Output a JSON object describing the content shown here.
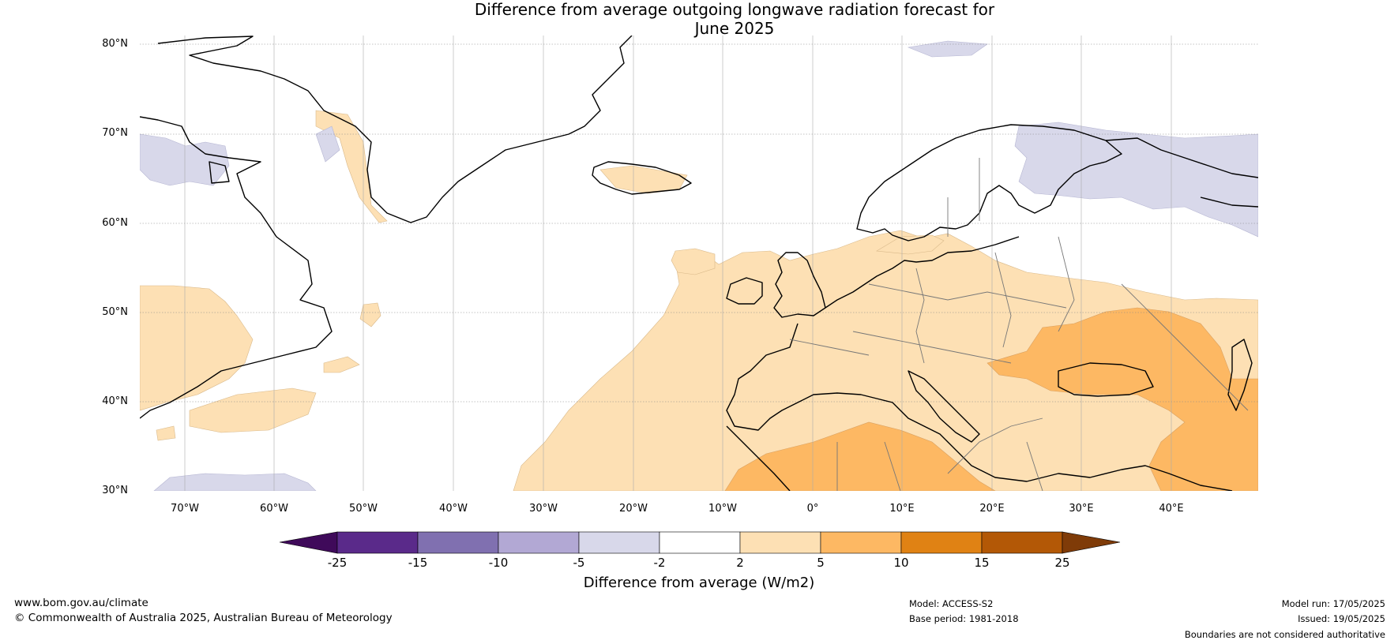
{
  "title_line1": "Difference from average outgoing longwave radiation forecast for",
  "title_line2": "June 2025",
  "lat_labels": [
    "80°N",
    "70°N",
    "60°N",
    "50°N",
    "40°N",
    "30°N"
  ],
  "lon_labels": [
    "70°W",
    "60°W",
    "50°W",
    "40°W",
    "30°W",
    "20°W",
    "10°W",
    "0°",
    "10°E",
    "20°E",
    "30°E",
    "40°E"
  ],
  "colorbar": {
    "ticks": [
      "-25",
      "-15",
      "-10",
      "-5",
      "-2",
      "2",
      "5",
      "10",
      "15",
      "25"
    ],
    "label": "Difference from average (W/m2)",
    "colors": [
      "#3f0a5a",
      "#5a2a8a",
      "#8070b0",
      "#b2a8d4",
      "#d8d8ea",
      "#ffffff",
      "#fde0b4",
      "#fdb863",
      "#e08214",
      "#b35806",
      "#7f3b08"
    ]
  },
  "footer": {
    "website": "www.bom.gov.au/climate",
    "copyright": "© Commonwealth of Australia 2025, Australian Bureau of Meteorology",
    "model": "Model: ACCESS-S2",
    "base_period": "Base period: 1981-2018",
    "model_run": "Model run: 17/05/2025",
    "issued": "Issued: 19/05/2025",
    "boundaries": "Boundaries are not considered authoritative"
  }
}
